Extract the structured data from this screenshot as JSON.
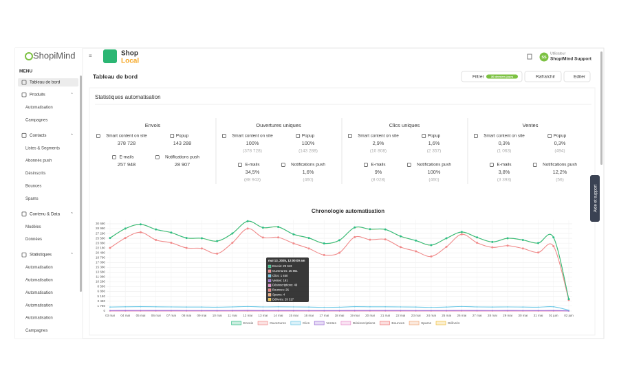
{
  "sidebar": {
    "logo": "ShopiMind",
    "menu": "MENU",
    "sections": [
      {
        "label": "Tableau de bord"
      },
      {
        "label": "Produits",
        "items": [
          "Automatisation",
          "Campagnes"
        ]
      },
      {
        "label": "Contacts",
        "items": [
          "Listes & Segments",
          "Abonnés push",
          "Désinscrits",
          "Bounces",
          "Spams"
        ]
      },
      {
        "label": "Contenu & Data",
        "items": [
          "Modèles",
          "Données"
        ]
      },
      {
        "label": "Statistiques",
        "items": [
          "Automatisation",
          "Automatisation",
          "Automatisation",
          "Automatisation",
          "Automatisation",
          "Campagnes"
        ]
      }
    ]
  },
  "shop_logo": {
    "line1": "Shop",
    "line2": "Local"
  },
  "user": {
    "initials": "SS",
    "role": "Utilisateur",
    "name": "ShopiMind Support"
  },
  "header": {
    "title": "Tableau de bord",
    "filter": "Filtrer",
    "filter_badge": "30 derniers jours",
    "refresh": "Rafraîchir",
    "edit": "Editer"
  },
  "card_title": "Statistiques automatisation",
  "stats": [
    {
      "title": "Envois",
      "items": [
        {
          "label": "Smart content on site",
          "value": "378 728"
        },
        {
          "label": "Popup",
          "value": "143 288"
        },
        {
          "label": "E-mails",
          "value": "257 948"
        },
        {
          "label": "Notifications push",
          "value": "28 907"
        }
      ]
    },
    {
      "title": "Ouvertures uniques",
      "items": [
        {
          "label": "Smart content on site",
          "value": "100%",
          "sub": "(378 728)"
        },
        {
          "label": "Popup",
          "value": "100%",
          "sub": "(143 288)"
        },
        {
          "label": "E-mails",
          "value": "34,5%",
          "sub": "(88 943)"
        },
        {
          "label": "Notifications push",
          "value": "1,6%",
          "sub": "(460)"
        }
      ]
    },
    {
      "title": "Clics uniques",
      "items": [
        {
          "label": "Smart content on site",
          "value": "2,9%",
          "sub": "(10 808)"
        },
        {
          "label": "Popup",
          "value": "1,6%",
          "sub": "(2 357)"
        },
        {
          "label": "E-mails",
          "value": "9%",
          "sub": "(8 028)"
        },
        {
          "label": "Notifications push",
          "value": "100%",
          "sub": "(460)"
        }
      ]
    },
    {
      "title": "Ventes",
      "items": [
        {
          "label": "Smart content on site",
          "value": "0,3%",
          "sub": "(1 063)"
        },
        {
          "label": "Popup",
          "value": "0,3%",
          "sub": "(494)"
        },
        {
          "label": "E-mails",
          "value": "3,8%",
          "sub": "(3 393)"
        },
        {
          "label": "Notifications push",
          "value": "12,2%",
          "sub": "(56)"
        }
      ]
    }
  ],
  "help_tab": "Aide et support",
  "chart_data": {
    "type": "line",
    "title": "Chronologie automatisation",
    "categories": [
      "03 mai",
      "04 mai",
      "05 mai",
      "06 mai",
      "07 mai",
      "08 mai",
      "09 mai",
      "10 mai",
      "11 mai",
      "12 mai",
      "13 mai",
      "14 mai",
      "15 mai",
      "16 mai",
      "17 mai",
      "18 mai",
      "19 mai",
      "20 mai",
      "21 mai",
      "22 mai",
      "23 mai",
      "24 mai",
      "25 mai",
      "26 mai",
      "27 mai",
      "28 mai",
      "29 mai",
      "30 mai",
      "31 mai",
      "01 juin",
      "02 juin"
    ],
    "ylim": [
      0,
      32000
    ],
    "yticks": [
      0,
      {
        "value": 1780,
        "label": "1 780"
      },
      {
        "value": 3480,
        "label": "3 480"
      },
      {
        "value": 5180,
        "label": "5 180"
      },
      {
        "value": 6880,
        "label": "6 880"
      },
      {
        "value": 8580,
        "label": "8 580"
      },
      {
        "value": 10280,
        "label": "10 280"
      },
      {
        "value": 11980,
        "label": "11 980"
      },
      {
        "value": 13680,
        "label": "13 680"
      },
      {
        "value": 15380,
        "label": "15 380"
      },
      {
        "value": 17080,
        "label": "17 080"
      },
      {
        "value": 18780,
        "label": "18 780"
      },
      {
        "value": 20480,
        "label": "20 480"
      },
      {
        "value": 22180,
        "label": "22 180"
      },
      {
        "value": 23880,
        "label": "23 880"
      },
      {
        "value": 25580,
        "label": "25 580"
      },
      {
        "value": 27280,
        "label": "27 280"
      },
      {
        "value": 28980,
        "label": "28 980"
      },
      {
        "value": 30680,
        "label": "30 680"
      }
    ],
    "grid": true,
    "series": [
      {
        "name": "Envois",
        "color": "#2ebd85",
        "values": [
          25700,
          29000,
          30500,
          28700,
          27600,
          25700,
          25600,
          24600,
          27300,
          31600,
          29343,
          29600,
          27000,
          25700,
          23800,
          24900,
          29400,
          28800,
          28700,
          26300,
          24800,
          23200,
          25600,
          27800,
          25900,
          24300,
          25600,
          25000,
          23900,
          25900,
          4200
        ]
      },
      {
        "name": "Ouvertures",
        "color": "#f08a8a",
        "values": [
          22200,
          25700,
          27700,
          25000,
          24000,
          22200,
          22000,
          20200,
          24000,
          29000,
          25861,
          25900,
          23800,
          22000,
          19700,
          20500,
          26000,
          25100,
          25200,
          22500,
          21000,
          19200,
          22600,
          27000,
          24000,
          22400,
          23000,
          22000,
          20600,
          22800,
          3900
        ]
      },
      {
        "name": "Clics",
        "color": "#6cc8e6",
        "values": [
          1400,
          1500,
          1550,
          1500,
          1450,
          1400,
          1400,
          1350,
          1450,
          1600,
          1450,
          1500,
          1450,
          1400,
          1300,
          1350,
          1550,
          1500,
          1500,
          1450,
          1400,
          1300,
          1400,
          1600,
          1450,
          1400,
          1450,
          1400,
          1350,
          1500,
          300
        ]
      },
      {
        "name": "Ventes",
        "color": "#9b6fd6",
        "values": [
          180,
          200,
          210,
          190,
          190,
          180,
          180,
          170,
          190,
          220,
          191,
          200,
          190,
          180,
          170,
          170,
          200,
          200,
          200,
          190,
          180,
          170,
          180,
          210,
          190,
          180,
          190,
          180,
          170,
          190,
          40
        ]
      },
      {
        "name": "Désinscriptions",
        "color": "#e88ccc",
        "values": [
          45,
          50,
          55,
          50,
          48,
          45,
          45,
          42,
          48,
          58,
          49,
          50,
          48,
          45,
          42,
          43,
          50,
          49,
          49,
          46,
          44,
          42,
          45,
          52,
          47,
          44,
          46,
          45,
          43,
          47,
          10
        ]
      },
      {
        "name": "Bounces",
        "color": "#f07a7a",
        "values": [
          24,
          27,
          29,
          27,
          26,
          24,
          24,
          22,
          26,
          31,
          26,
          27,
          26,
          24,
          22,
          23,
          27,
          26,
          26,
          25,
          24,
          22,
          24,
          28,
          25,
          24,
          25,
          24,
          23,
          25,
          5
        ]
      },
      {
        "name": "Spams",
        "color": "#f0a878",
        "values": [
          3,
          4,
          4,
          4,
          4,
          3,
          3,
          3,
          4,
          5,
          4,
          4,
          4,
          3,
          3,
          3,
          4,
          4,
          4,
          4,
          3,
          3,
          3,
          4,
          4,
          3,
          4,
          3,
          3,
          4,
          1
        ]
      },
      {
        "name": "Délivrés",
        "color": "#f0c040",
        "values": [
          25675,
          28974,
          30474,
          28674,
          27574,
          25676,
          25576,
          24576,
          27274,
          31569,
          29317,
          29574,
          26975,
          25676,
          23776,
          24876,
          29369,
          28774,
          28674,
          26276,
          24776,
          23177,
          25576,
          27769,
          25876,
          24277,
          25576,
          24976,
          23877,
          25873,
          4196
        ]
      }
    ],
    "tooltip": {
      "title": "mai 13, 2025, 12:00:00 am",
      "items": [
        "Envois: 29 343",
        "Ouvertures: 25 861",
        "Clics: 1 450",
        "Ventes: 191",
        "Désinscriptions: 49",
        "Bounces: 26",
        "Spams: 4",
        "Délivrés: 29 317"
      ]
    }
  }
}
